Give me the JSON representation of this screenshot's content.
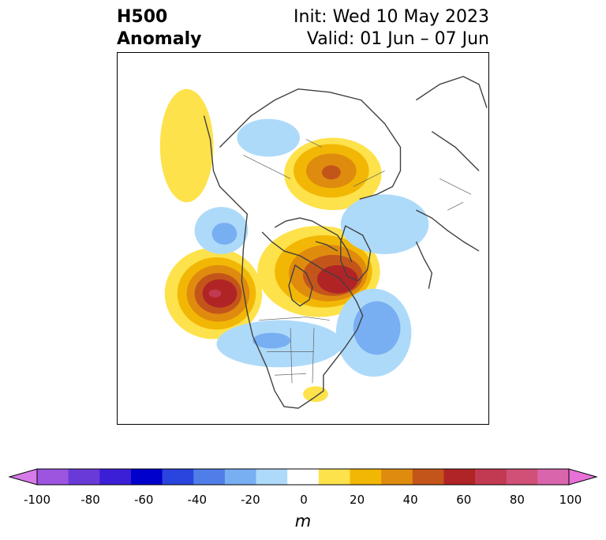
{
  "title": {
    "variable": "H500",
    "field": "Anomaly",
    "init": "Init: Wed 10 May 2023",
    "valid": "Valid: 01 Jun – 07 Jun"
  },
  "colorbar": {
    "unit": "m",
    "ticks": [
      "-100",
      "-80",
      "-60",
      "-40",
      "-20",
      "0",
      "20",
      "40",
      "60",
      "80",
      "100"
    ],
    "colors": [
      "#d67be8",
      "#9d55e0",
      "#6a3ad8",
      "#3b1fd6",
      "#0000cd",
      "#2a45dd",
      "#4f7ee8",
      "#78aff2",
      "#aedaf9",
      "#ffffff",
      "#fde24b",
      "#f2b705",
      "#df8b0e",
      "#c4551a",
      "#b02426",
      "#c23a51",
      "#d05077",
      "#d966ac",
      "#e871d8"
    ]
  },
  "map": {
    "projection": "polar-stereographic",
    "region": "North America / North Pacific / Arctic",
    "anomaly_centers": [
      {
        "sign": "positive",
        "value": 65,
        "location": "NE Pacific off US West Coast"
      },
      {
        "sign": "positive",
        "value": 60,
        "location": "Hudson Bay / Canadian Arctic"
      },
      {
        "sign": "positive",
        "value": 45,
        "location": "Siberia / Arctic Ocean"
      },
      {
        "sign": "positive",
        "value": 15,
        "location": "Bering Sea"
      },
      {
        "sign": "positive",
        "value": 12,
        "location": "Southeast US"
      },
      {
        "sign": "negative",
        "value": -30,
        "location": "NW Atlantic"
      },
      {
        "sign": "negative",
        "value": -25,
        "location": "Aleutians / Gulf of Alaska"
      },
      {
        "sign": "negative",
        "value": -20,
        "location": "Central US"
      },
      {
        "sign": "negative",
        "value": -18,
        "location": "Scandinavia / Europe"
      },
      {
        "sign": "negative",
        "value": -15,
        "location": "East Siberia"
      }
    ]
  }
}
